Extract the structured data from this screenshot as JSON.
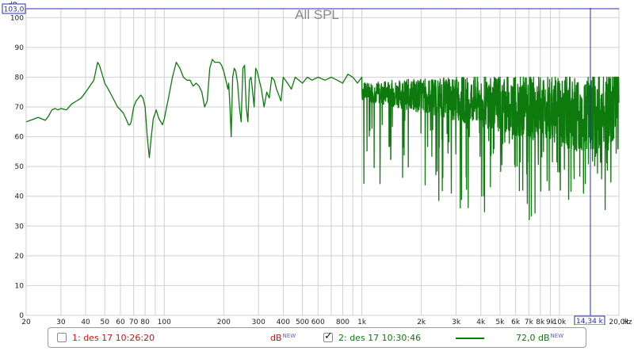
{
  "chart_data": {
    "type": "line",
    "title": "All SPL",
    "ylabel": "dB",
    "xunit": "Hz",
    "xscale": "log",
    "xlim": [
      20,
      20000
    ],
    "ylim": [
      0,
      103
    ],
    "grid": true,
    "x_ticks": [
      {
        "v": 20,
        "label": "20"
      },
      {
        "v": 30,
        "label": "30"
      },
      {
        "v": 40,
        "label": "40"
      },
      {
        "v": 50,
        "label": "50"
      },
      {
        "v": 60,
        "label": "60"
      },
      {
        "v": 70,
        "label": "70"
      },
      {
        "v": 80,
        "label": "80"
      },
      {
        "v": 100,
        "label": "100"
      },
      {
        "v": 200,
        "label": "200"
      },
      {
        "v": 300,
        "label": "300"
      },
      {
        "v": 400,
        "label": "400"
      },
      {
        "v": 500,
        "label": "500"
      },
      {
        "v": 600,
        "label": "600"
      },
      {
        "v": 800,
        "label": "800"
      },
      {
        "v": 1000,
        "label": "1k"
      },
      {
        "v": 2000,
        "label": "2k"
      },
      {
        "v": 3000,
        "label": "3k"
      },
      {
        "v": 4000,
        "label": "4k"
      },
      {
        "v": 5000,
        "label": "5k"
      },
      {
        "v": 6000,
        "label": "6k"
      },
      {
        "v": 7000,
        "label": "7k"
      },
      {
        "v": 8000,
        "label": "8k"
      },
      {
        "v": 9000,
        "label": "9k"
      },
      {
        "v": 10000,
        "label": "10k"
      },
      {
        "v": 20000,
        "label": "20,0k"
      }
    ],
    "y_ticks": [
      0,
      10,
      20,
      30,
      40,
      50,
      60,
      70,
      80,
      90,
      100
    ],
    "cursor": {
      "x": 14340,
      "x_label": "14,34 k",
      "y": 103,
      "y_label": "103,0"
    },
    "series": [
      {
        "name": "2: des 17 10:30:46",
        "color": "#0c7a0c",
        "x": [
          20,
          21,
          22,
          23,
          24,
          25,
          26,
          27,
          28,
          29,
          30,
          32,
          34,
          36,
          38,
          40,
          42,
          44,
          45,
          46,
          47,
          48,
          50,
          52,
          54,
          56,
          58,
          60,
          62,
          64,
          66,
          67,
          68,
          70,
          72,
          74,
          76,
          78,
          80,
          82,
          84,
          86,
          88,
          90,
          91,
          92,
          93,
          94,
          96,
          98,
          100,
          105,
          110,
          115,
          120,
          125,
          130,
          135,
          140,
          145,
          150,
          155,
          160,
          165,
          170,
          175,
          180,
          185,
          190,
          195,
          200,
          205,
          210,
          212,
          215,
          218,
          222,
          226,
          230,
          235,
          240,
          245,
          250,
          255,
          260,
          265,
          270,
          275,
          280,
          285,
          290,
          295,
          300,
          305,
          310,
          320,
          330,
          340,
          350,
          360,
          370,
          380,
          390,
          400,
          420,
          440,
          460,
          480,
          500,
          530,
          560,
          600,
          650,
          700,
          750,
          800,
          850,
          900,
          950,
          1000
        ],
        "values": [
          65,
          65.5,
          66,
          66.5,
          66,
          65.5,
          67,
          69,
          69.5,
          69,
          69.5,
          69,
          71,
          72,
          73,
          75,
          77,
          79,
          82,
          85,
          84,
          82,
          78,
          76,
          74,
          72,
          70,
          69,
          68,
          66,
          64,
          64,
          65,
          70,
          72,
          73,
          74,
          73,
          70,
          60,
          53,
          60,
          66,
          68,
          69,
          68,
          67,
          66,
          65,
          64,
          66,
          73,
          80,
          85,
          83,
          80,
          79,
          79,
          77,
          78,
          77,
          75,
          70,
          72,
          83,
          86,
          85,
          85,
          85,
          84,
          82,
          79,
          76,
          78,
          70,
          60,
          80,
          83,
          82,
          78,
          70,
          65,
          83,
          84,
          70,
          65,
          79,
          80,
          75,
          70,
          83,
          82,
          80,
          78,
          76,
          70,
          75,
          73,
          80,
          79,
          76,
          74,
          72,
          80,
          78,
          76,
          80,
          79,
          78,
          80,
          79,
          80,
          79,
          80,
          79,
          78,
          81,
          80,
          78,
          80
        ]
      }
    ],
    "noise_from_hz": 1000
  },
  "legend": {
    "items": [
      {
        "checked": false,
        "label": "1: des 17 10:26:20",
        "color": "#cc1111",
        "db_label": "dB",
        "db_sup": "NEW",
        "value": ""
      },
      {
        "checked": true,
        "label": "2: des 17 10:30:46",
        "color": "#0c7a0c",
        "db_label": "dB",
        "db_sup": "NEW",
        "value": "72,0"
      }
    ]
  }
}
